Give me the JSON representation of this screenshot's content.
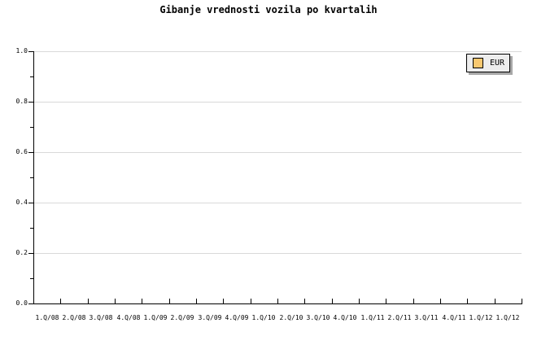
{
  "title": "Gibanje vrednosti vozila po kvartalih",
  "legend": {
    "label": "EUR",
    "swatch_color": "#F8C870",
    "background": "#EDEDED",
    "shadow_color": "#A8A8A8"
  },
  "colors": {
    "background": "#FFFFFF",
    "axis": "#000000",
    "grid": "#D9D9D9",
    "text": "#000000"
  },
  "chart_data": {
    "type": "line",
    "title": "Gibanje vrednosti vozila po kvartalih",
    "categories": [
      "1.Q/08",
      "2.Q/08",
      "3.Q/08",
      "4.Q/08",
      "1.Q/09",
      "2.Q/09",
      "3.Q/09",
      "4.Q/09",
      "1.Q/10",
      "2.Q/10",
      "3.Q/10",
      "4.Q/10",
      "1.Q/11",
      "2.Q/11",
      "3.Q/11",
      "4.Q/11",
      "1.Q/12",
      "1.Q/12"
    ],
    "series": [
      {
        "name": "EUR",
        "color": "#F8C870",
        "values": []
      }
    ],
    "xlabel": "",
    "ylabel": "",
    "ylim": [
      0.0,
      1.0
    ],
    "y_tick_labels": [
      "1.0",
      "0.8",
      "0.6",
      "0.4",
      "0.2",
      "0.0"
    ],
    "y_minor_tick_step": 0.1,
    "grid": true,
    "legend_position": "top-right",
    "note": "plot area contains no drawn data points"
  }
}
